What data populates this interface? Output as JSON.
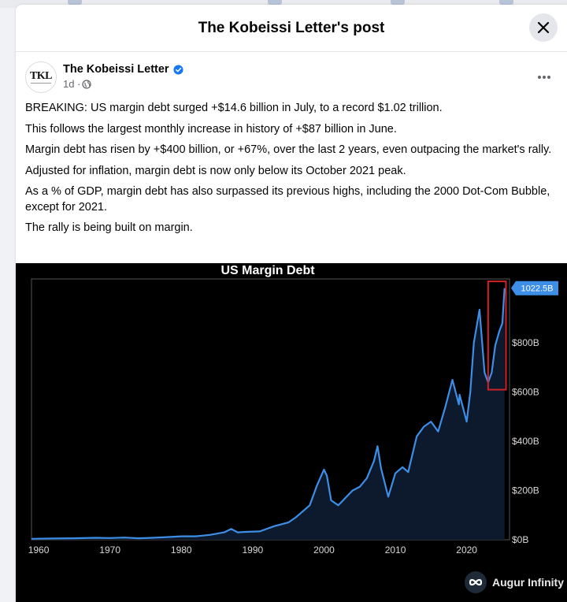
{
  "modal": {
    "title": "The Kobeissi Letter's post"
  },
  "post": {
    "author": "The Kobeissi Letter",
    "avatar_text": "TKL",
    "time": "1d ·",
    "paragraphs": [
      "BREAKING: US margin debt surged +$14.6 billion in July, to a record $1.02 trillion.",
      "This follows the largest monthly increase in history of +$87 billion in June.",
      "Margin debt has risen by +$400 billion, or +67%, over the last 2 years, even outpacing the market's rally.",
      "Adjusted for inflation, margin debt is now only below its October 2021 peak.",
      "As a % of GDP, margin debt has also surpassed its previous highs, including the 2000 Dot-Com Bubble, except for 2021.",
      "The rally is being built on margin."
    ]
  },
  "chart_data": {
    "type": "area",
    "title": "US Margin Debt",
    "xlabel": "",
    "ylabel": "",
    "x_ticks": [
      "1960",
      "1970",
      "1980",
      "1990",
      "2000",
      "2010",
      "2020"
    ],
    "y_ticks": [
      "$800B",
      "$600B",
      "$400B",
      "$200B",
      "$0B"
    ],
    "last_value_label": "1022.5B",
    "xlim": [
      1959,
      2026
    ],
    "ylim": [
      0,
      1060
    ],
    "series": [
      {
        "values": [
          [
            1959,
            4
          ],
          [
            1962,
            5
          ],
          [
            1965,
            6
          ],
          [
            1968,
            8
          ],
          [
            1970,
            7
          ],
          [
            1972,
            9
          ],
          [
            1974,
            6
          ],
          [
            1976,
            8
          ],
          [
            1978,
            11
          ],
          [
            1980,
            14
          ],
          [
            1982,
            14
          ],
          [
            1984,
            20
          ],
          [
            1986,
            30
          ],
          [
            1987,
            44
          ],
          [
            1987.9,
            30
          ],
          [
            1989,
            32
          ],
          [
            1991,
            34
          ],
          [
            1993,
            55
          ],
          [
            1995,
            70
          ],
          [
            1996,
            90
          ],
          [
            1997,
            115
          ],
          [
            1998,
            140
          ],
          [
            1999,
            220
          ],
          [
            2000,
            285
          ],
          [
            2000.4,
            260
          ],
          [
            2001,
            160
          ],
          [
            2002,
            140
          ],
          [
            2003,
            170
          ],
          [
            2004,
            200
          ],
          [
            2005,
            215
          ],
          [
            2006,
            250
          ],
          [
            2007,
            320
          ],
          [
            2007.5,
            380
          ],
          [
            2008,
            290
          ],
          [
            2009,
            175
          ],
          [
            2010,
            270
          ],
          [
            2011,
            295
          ],
          [
            2011.8,
            275
          ],
          [
            2012,
            300
          ],
          [
            2013,
            420
          ],
          [
            2014,
            460
          ],
          [
            2015,
            480
          ],
          [
            2016,
            440
          ],
          [
            2017,
            540
          ],
          [
            2018,
            650
          ],
          [
            2018.9,
            550
          ],
          [
            2019,
            590
          ],
          [
            2020,
            480
          ],
          [
            2020.5,
            600
          ],
          [
            2021,
            800
          ],
          [
            2021.8,
            935
          ],
          [
            2022.5,
            680
          ],
          [
            2023,
            640
          ],
          [
            2023.5,
            680
          ],
          [
            2024,
            790
          ],
          [
            2024.6,
            850
          ],
          [
            2025,
            880
          ],
          [
            2025.3,
            1022.5
          ]
        ]
      }
    ],
    "highlight_box": {
      "x_range": [
        2023,
        2025.5
      ],
      "y_range": [
        610,
        1050
      ]
    },
    "colors": {
      "line": "#3d8ee6",
      "fill": "#0d1a2e",
      "highlight": "#d0222a",
      "label_bg": "#3d8ee6"
    }
  },
  "watermark": {
    "text": "Augur Infinity"
  }
}
